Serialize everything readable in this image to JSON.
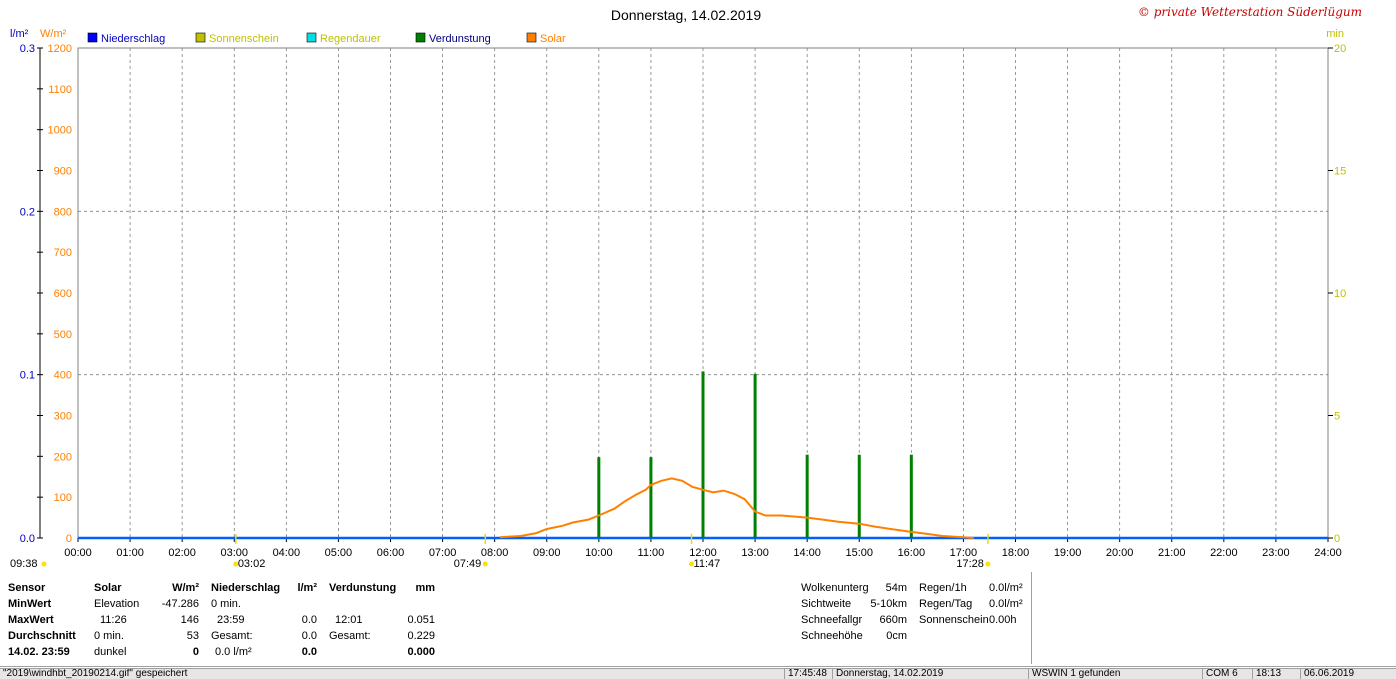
{
  "header": {
    "title": "Donnerstag, 14.02.2019",
    "copyright": "© private Wetterstation Süderlügum"
  },
  "axis_units": {
    "left_rain": "l/m²",
    "left_solar": "W/m²",
    "right": "min"
  },
  "legend": [
    {
      "label": "Niederschlag",
      "color": "#0000ff",
      "text_color": "#0000c0"
    },
    {
      "label": "Sonnenschein",
      "color": "#c0c000",
      "text_color": "#c0c000"
    },
    {
      "label": "Regendauer",
      "color": "#00e0e0",
      "text_color": "#c0c000"
    },
    {
      "label": "Verdunstung",
      "color": "#008000",
      "text_color": "#000080"
    },
    {
      "label": "Solar",
      "color": "#ff8000",
      "text_color": "#ff8000"
    }
  ],
  "chart_data": {
    "type": "line",
    "title": "Donnerstag, 14.02.2019",
    "x_ticks": [
      "00:00",
      "01:00",
      "02:00",
      "03:00",
      "04:00",
      "05:00",
      "06:00",
      "07:00",
      "08:00",
      "09:00",
      "10:00",
      "11:00",
      "12:00",
      "13:00",
      "14:00",
      "15:00",
      "16:00",
      "17:00",
      "18:00",
      "19:00",
      "20:00",
      "21:00",
      "22:00",
      "23:00",
      "24:00"
    ],
    "y_left_rain": {
      "ticks": [
        "0.0",
        "0.1",
        "0.2",
        "0.3"
      ],
      "ylim": [
        0,
        0.3
      ]
    },
    "y_left_solar": {
      "ticks": [
        "0",
        "100",
        "200",
        "300",
        "400",
        "500",
        "600",
        "700",
        "800",
        "900",
        "1000",
        "1100",
        "1200"
      ],
      "ylim": [
        0,
        1200
      ]
    },
    "y_right": {
      "ticks": [
        "0",
        "5",
        "10",
        "15",
        "20"
      ],
      "ylim": [
        0,
        20
      ]
    },
    "grid": true,
    "solar_series": {
      "name": "Solar",
      "hours": [
        8.1,
        8.5,
        8.8,
        9.0,
        9.3,
        9.5,
        9.8,
        10.0,
        10.3,
        10.5,
        10.7,
        10.9,
        11.0,
        11.2,
        11.4,
        11.6,
        11.8,
        12.0,
        12.2,
        12.4,
        12.6,
        12.8,
        13.0,
        13.2,
        13.5,
        13.8,
        14.0,
        14.3,
        14.6,
        15.0,
        15.3,
        15.6,
        16.0,
        16.3,
        16.6,
        17.0,
        17.2
      ],
      "values": [
        2,
        5,
        12,
        22,
        30,
        38,
        45,
        55,
        72,
        90,
        105,
        118,
        130,
        140,
        146,
        140,
        125,
        118,
        112,
        116,
        108,
        95,
        65,
        55,
        55,
        52,
        50,
        45,
        40,
        35,
        28,
        22,
        15,
        10,
        5,
        2,
        0
      ]
    },
    "verdunstung_series": {
      "name": "Verdunstung",
      "hours": [
        10.0,
        11.0,
        12.0,
        13.0,
        14.0,
        15.0,
        16.0
      ],
      "values": [
        3.3,
        3.3,
        6.8,
        6.7,
        3.4,
        3.4,
        3.4
      ]
    },
    "niederschlag_series": {
      "name": "Niederschlag",
      "hours": [
        0,
        24
      ],
      "values": [
        0,
        0
      ]
    },
    "markers_bottom": [
      {
        "label": "09:38",
        "hour": -1.2
      },
      {
        "label": "03:02",
        "hour": 3.03
      },
      {
        "label": "07:49",
        "hour": 7.82
      },
      {
        "label": "11:47",
        "hour": 11.78
      },
      {
        "label": "17:28",
        "hour": 17.47
      }
    ]
  },
  "panels": {
    "sensor": {
      "h0": "Sensor",
      "r1": "MinWert",
      "r2": "MaxWert",
      "r3": "Durchschnitt",
      "r4": "14.02. 23:59"
    },
    "solar": {
      "h_label": "Solar",
      "h_unit": "W/m²",
      "r1_a": "Elevation",
      "r1_b": "-47.286",
      "r2_a": "11:26",
      "r2_b": "146",
      "r3_a": "0 min.",
      "r3_b": "53",
      "r4_a": "dunkel",
      "r4_b": "0"
    },
    "rain": {
      "h_label": "Niederschlag",
      "h_unit": "l/m²",
      "r1_a": "0 min.",
      "r2_a": "23:59",
      "r2_b": "0.0",
      "r3_a": "Gesamt:",
      "r3_b": "0.0",
      "r4_a": "0.0 l/m²",
      "r4_b": "0.0"
    },
    "evap": {
      "h_label": "Verdunstung",
      "h_unit": "mm",
      "r2_a": "12:01",
      "r2_b": "0.051",
      "r3_a": "Gesamt:",
      "r3_b": "0.229",
      "r4_b": "0.000"
    },
    "weather": {
      "r1_a": "Wolkenunterg",
      "r1_b": "54m",
      "r2_a": "Sichtweite",
      "r2_b": "5-10km",
      "r3_a": "Schneefallgr",
      "r3_b": "660m",
      "r4_a": "Schneehöhe",
      "r4_b": "0cm"
    },
    "regen": {
      "r1_a": "Regen/1h",
      "r1_b": "0.0l/m²",
      "r2_a": "Regen/Tag",
      "r2_b": "0.0l/m²",
      "r3_a": "Sonnenschein",
      "r3_b": "0.00h"
    }
  },
  "statusbar": {
    "file": "\"2019\\windhbt_20190214.gif\"  gespeichert",
    "time": "17:45:48",
    "date": "Donnerstag, 14.02.2019",
    "found": "WSWIN 1 gefunden",
    "com": "COM 6",
    "clock": "18:13",
    "today": "06.06.2019"
  }
}
